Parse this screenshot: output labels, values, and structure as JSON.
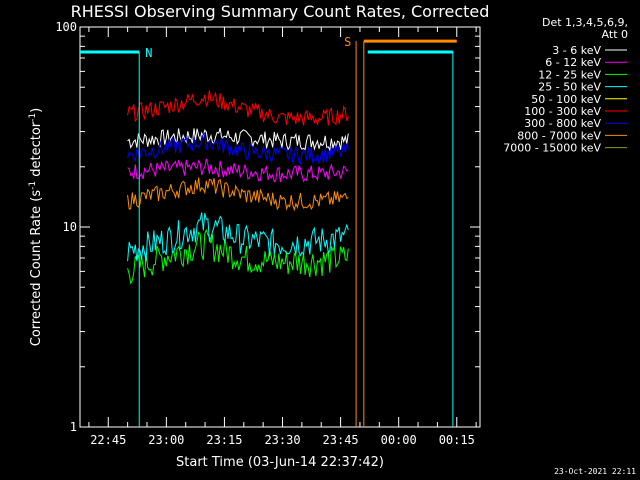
{
  "chart_data": {
    "type": "line",
    "title": "RHESSI Observing Summary Count Rates, Corrected",
    "xlabel": "Start Time (03-Jun-14 22:37:42)",
    "ylabel": "Corrected Count Rate (s⁻¹ detector⁻¹)",
    "ylabel_parts": {
      "main": "Corrected Count Rate (s",
      "sup1": "-1",
      "mid": " detector",
      "sup2": "-1",
      "end": ")"
    },
    "y_scale": "log",
    "ylim": [
      1,
      100
    ],
    "y_ticks": [
      {
        "value": 1,
        "label": "1"
      },
      {
        "value": 10,
        "label": "10"
      },
      {
        "value": 100,
        "label": "100"
      }
    ],
    "xlim": [
      "22:37:42",
      "00:21:00"
    ],
    "x_ticks": [
      "22:45",
      "23:00",
      "23:15",
      "23:30",
      "23:45",
      "00:00",
      "00:15"
    ],
    "legend_header": [
      "Det 1,3,4,5,6,9,",
      "Att 0"
    ],
    "legend_placement": "right",
    "series": [
      {
        "name": "3 - 6 keV",
        "color": "#ffffff",
        "x": [
          "22:50",
          "23:00",
          "23:10",
          "23:20",
          "23:30",
          "23:40",
          "23:47"
        ],
        "values": [
          27,
          28,
          29,
          28,
          27,
          27,
          27
        ]
      },
      {
        "name": "6 - 12 keV",
        "color": "#ff00ff",
        "x": [
          "22:50",
          "23:00",
          "23:10",
          "23:20",
          "23:30",
          "23:40",
          "23:47"
        ],
        "values": [
          19,
          19.5,
          20,
          19,
          18.5,
          18.5,
          19
        ]
      },
      {
        "name": "12 - 25 keV",
        "color": "#00ff00",
        "x": [
          "22:50",
          "23:00",
          "23:10",
          "23:20",
          "23:30",
          "23:40",
          "23:47"
        ],
        "values": [
          6,
          7.2,
          8.3,
          7,
          6.7,
          6.8,
          7.1
        ]
      },
      {
        "name": "25 - 50 keV",
        "color": "#00ffff",
        "x": [
          "22:50",
          "23:00",
          "23:10",
          "23:20",
          "23:30",
          "23:40",
          "23:47"
        ],
        "values": [
          7.6,
          8.7,
          10.4,
          8.7,
          8.3,
          8.6,
          9
        ]
      },
      {
        "name": "50 - 100 keV",
        "color": "#ffff00",
        "x": [],
        "values": []
      },
      {
        "name": "100 - 300 keV",
        "color": "#ff0000",
        "x": [
          "22:50",
          "23:00",
          "23:10",
          "23:20",
          "23:30",
          "23:40",
          "23:47"
        ],
        "values": [
          37,
          40,
          45,
          39,
          35,
          35,
          37
        ]
      },
      {
        "name": "300 - 800 keV",
        "color": "#0000ff",
        "x": [
          "22:50",
          "23:00",
          "23:10",
          "23:20",
          "23:30",
          "23:40",
          "23:47"
        ],
        "values": [
          23,
          25,
          27,
          24,
          23,
          23,
          24
        ]
      },
      {
        "name": "800 - 7000 keV",
        "color": "#ff8c00",
        "x": [
          "22:50",
          "23:00",
          "23:10",
          "23:20",
          "23:30",
          "23:40",
          "23:47"
        ],
        "values": [
          13.5,
          15,
          16.5,
          14.5,
          13.5,
          13.5,
          14
        ]
      },
      {
        "name": "7000 - 15000 keV",
        "color": "#8b9a1f",
        "x": [],
        "values": []
      }
    ],
    "flags": [
      {
        "label": "N",
        "color": "#00ffff",
        "level": 75,
        "segments": [
          [
            "22:37:42",
            "22:53"
          ],
          [
            "23:52",
            "00:14"
          ]
        ],
        "boundaries": [
          "22:53",
          "00:14"
        ]
      },
      {
        "label": "S",
        "color": "#ff8c00",
        "level": 85,
        "segments": [
          [
            "23:51",
            "00:15"
          ]
        ],
        "boundaries": [
          "23:49",
          "23:51"
        ]
      }
    ],
    "footer_timestamp": "23-Oct-2021 22:11"
  }
}
